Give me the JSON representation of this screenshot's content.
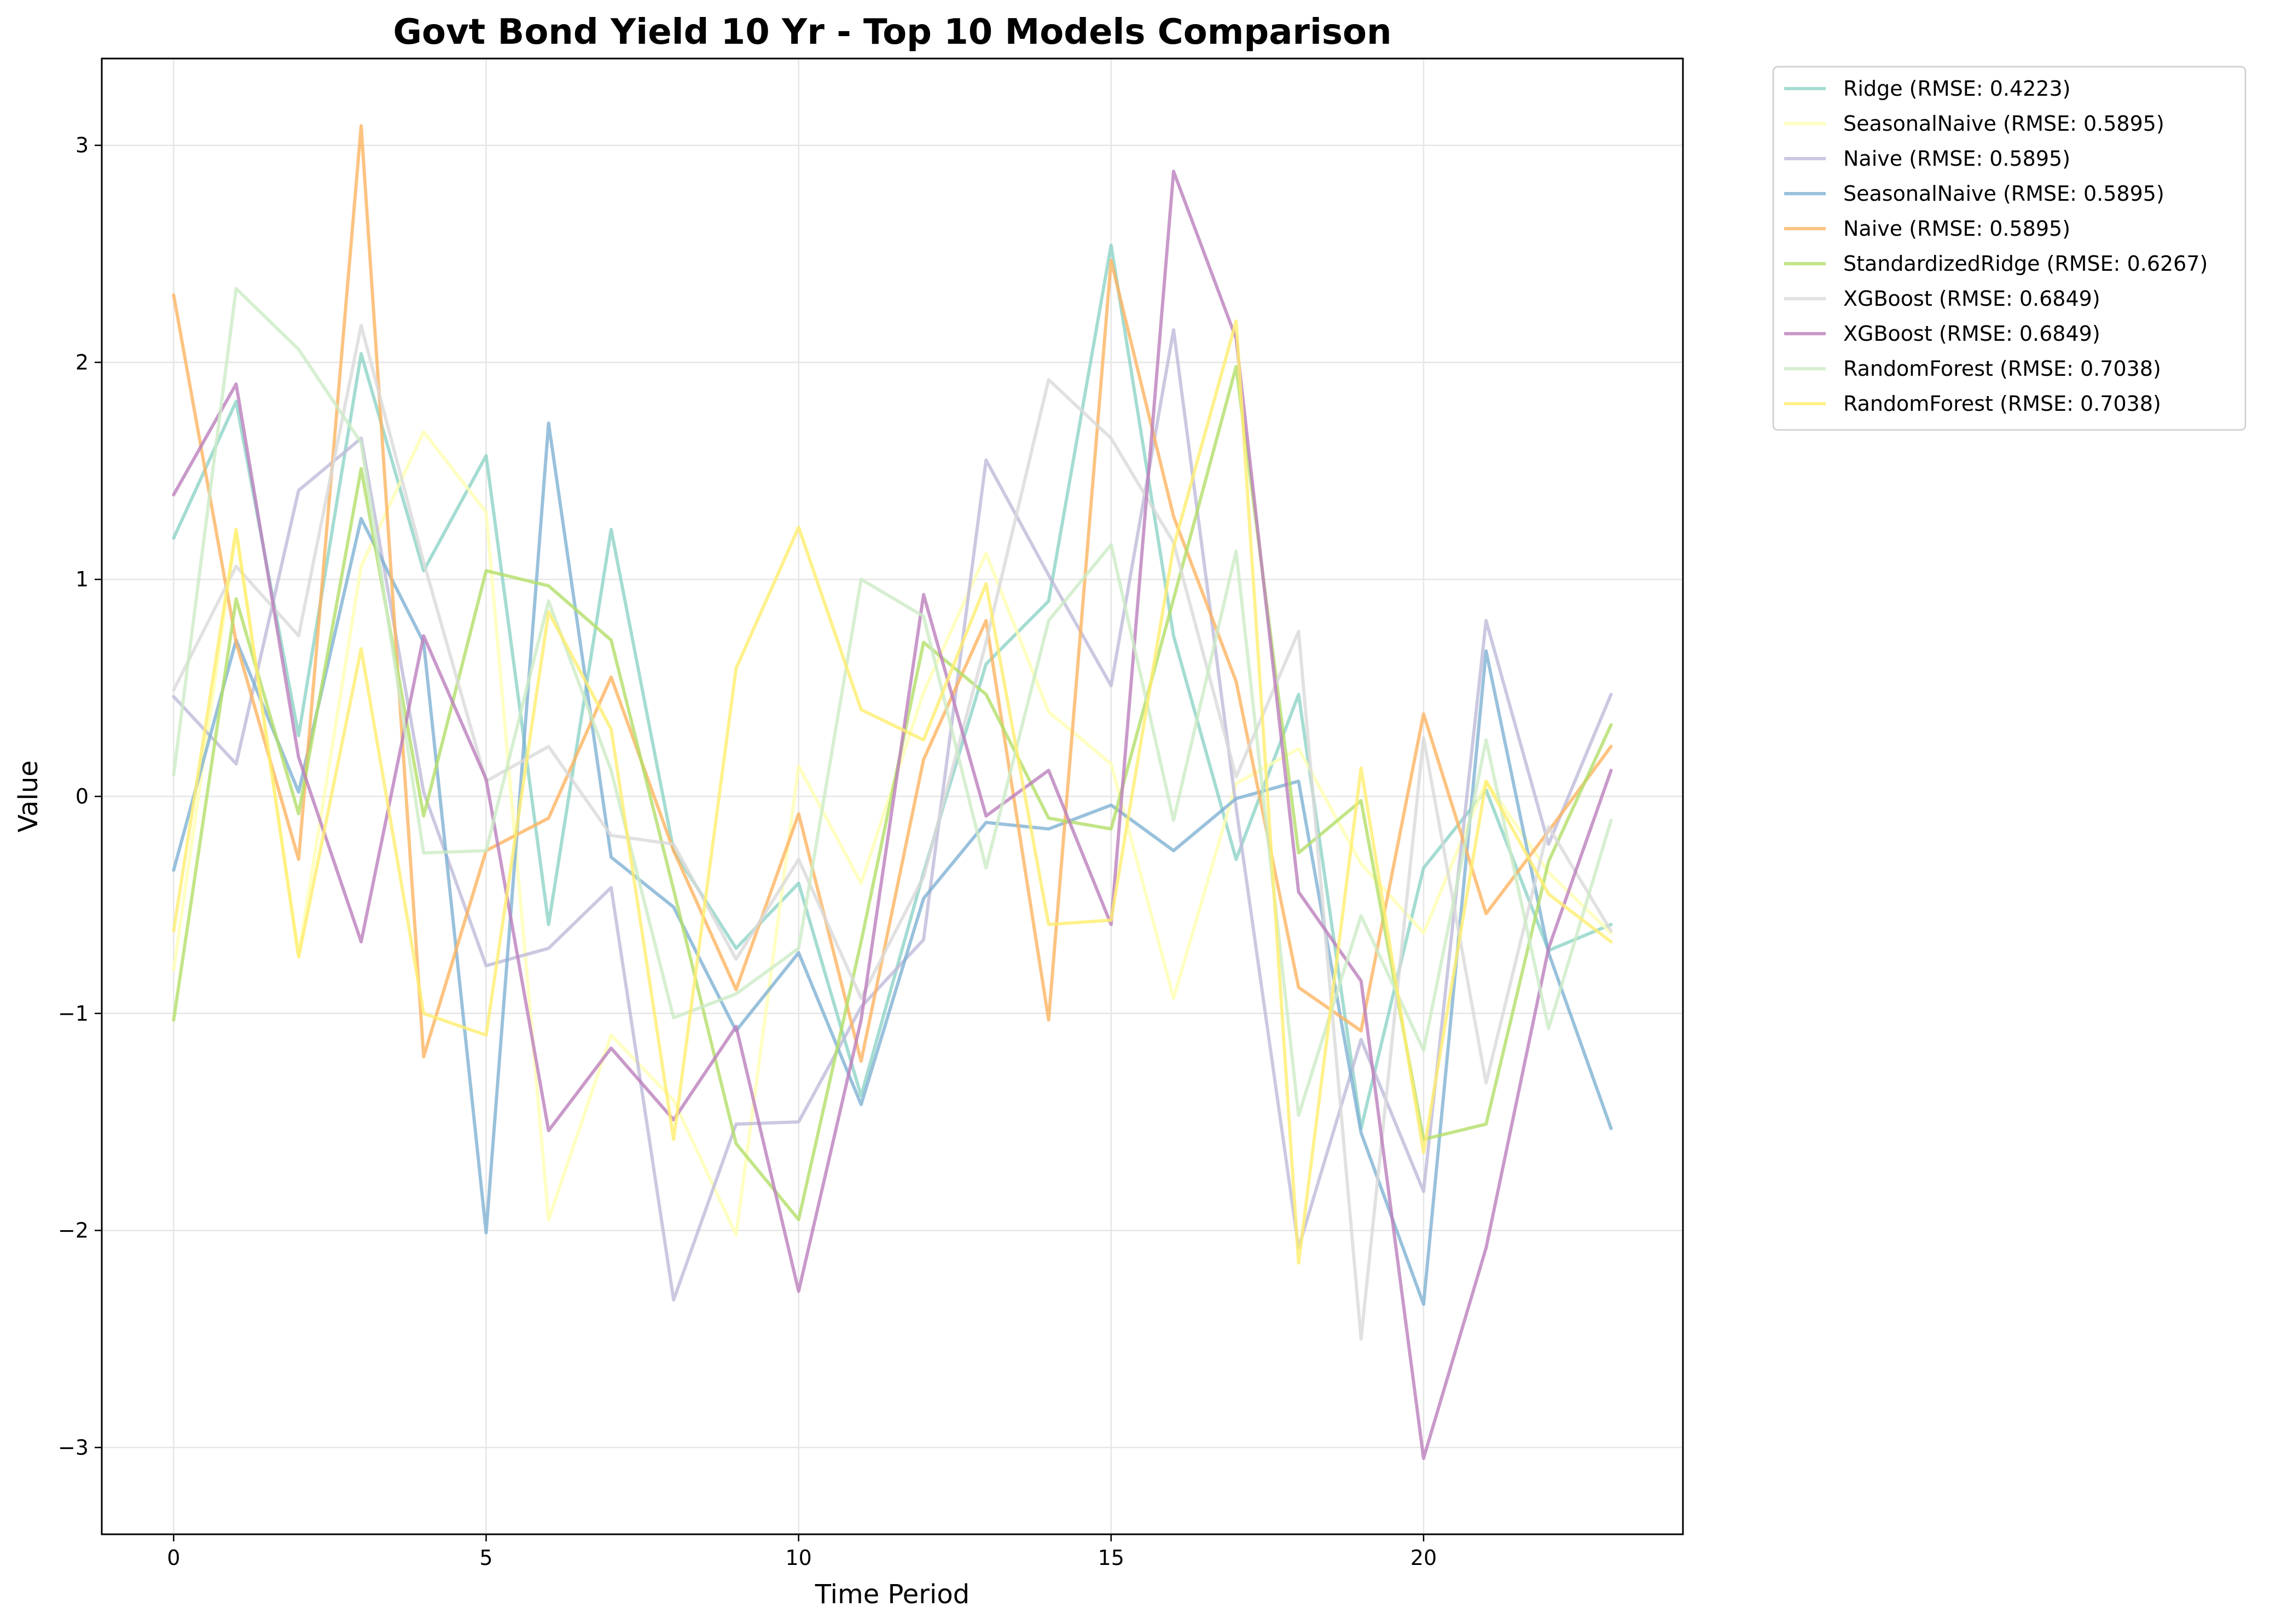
{
  "chart_data": {
    "type": "line",
    "title": "Govt Bond Yield 10 Yr - Top 10 Models Comparison",
    "xlabel": "Time Period",
    "ylabel": "Value",
    "xlim": [
      -1.15,
      24.15
    ],
    "ylim": [
      -3.4,
      3.4
    ],
    "xticks": [
      0,
      5,
      10,
      15,
      20
    ],
    "yticks": [
      -3,
      -2,
      -1,
      0,
      1,
      2,
      3
    ],
    "ytick_labels": [
      "−3",
      "−2",
      "−1",
      "0",
      "1",
      "2",
      "3"
    ],
    "grid": true,
    "legend_position": "outside-top-right",
    "x": [
      0,
      1,
      2,
      3,
      4,
      5,
      6,
      7,
      8,
      9,
      10,
      11,
      12,
      13,
      14,
      15,
      16,
      17,
      18,
      19,
      20,
      21,
      22,
      23
    ],
    "series": [
      {
        "name": "Ridge (RMSE: 0.4223)",
        "color": "#8dd3c7",
        "values": [
          1.19,
          1.82,
          0.28,
          2.04,
          1.04,
          1.57,
          -0.59,
          1.23,
          -0.25,
          -0.7,
          -0.4,
          -1.38,
          -0.35,
          0.61,
          0.9,
          2.54,
          0.74,
          -0.29,
          0.47,
          -1.53,
          -0.33,
          0.03,
          -0.71,
          -0.59
        ]
      },
      {
        "name": "SeasonalNaive (RMSE: 0.5895)",
        "color": "#ffffb3",
        "values": [
          -0.8,
          1.22,
          -0.73,
          1.06,
          1.68,
          1.31,
          -1.95,
          -1.1,
          -1.4,
          -2.02,
          0.14,
          -0.4,
          0.48,
          1.12,
          0.39,
          0.15,
          -0.93,
          0.06,
          0.22,
          -0.31,
          -0.63,
          0.07,
          -0.35,
          -0.63
        ]
      },
      {
        "name": "Naive (RMSE: 0.5895)",
        "color": "#bebada",
        "values": [
          0.46,
          0.15,
          1.41,
          1.65,
          0.02,
          -0.78,
          -0.7,
          -0.42,
          -2.32,
          -1.51,
          -1.5,
          -0.97,
          -0.66,
          1.55,
          1.02,
          0.51,
          2.15,
          -0.05,
          -2.08,
          -1.12,
          -1.82,
          0.81,
          -0.22,
          0.47
        ]
      },
      {
        "name": "SeasonalNaive (RMSE: 0.5895)",
        "color": "#80b1d3",
        "values": [
          -0.34,
          0.72,
          0.02,
          1.28,
          0.71,
          -2.01,
          1.72,
          -0.28,
          -0.51,
          -1.08,
          -0.72,
          -1.42,
          -0.47,
          -0.12,
          -0.15,
          -0.04,
          -0.25,
          -0.01,
          0.07,
          -1.55,
          -2.34,
          0.67,
          -0.72,
          -1.53
        ]
      },
      {
        "name": "Naive (RMSE: 0.5895)",
        "color": "#fdb462",
        "values": [
          2.31,
          0.71,
          -0.29,
          3.09,
          -1.2,
          -0.25,
          -0.1,
          0.55,
          -0.25,
          -0.89,
          -0.08,
          -1.22,
          0.17,
          0.81,
          -1.03,
          2.47,
          1.29,
          0.53,
          -0.88,
          -1.08,
          0.38,
          -0.54,
          -0.16,
          0.23
        ]
      },
      {
        "name": "StandardizedRidge (RMSE: 0.6267)",
        "color": "#b3de69",
        "values": [
          -1.03,
          0.91,
          -0.08,
          1.51,
          -0.09,
          1.04,
          0.97,
          0.72,
          -0.43,
          -1.6,
          -1.95,
          -0.67,
          0.71,
          0.47,
          -0.1,
          -0.15,
          0.91,
          1.98,
          -0.26,
          -0.02,
          -1.58,
          -1.51,
          -0.3,
          0.33
        ]
      },
      {
        "name": "XGBoost (RMSE: 0.6849)",
        "color": "#d9d9d9",
        "values": [
          0.49,
          1.06,
          0.74,
          2.17,
          1.08,
          0.07,
          0.23,
          -0.18,
          -0.22,
          -0.75,
          -0.29,
          -0.93,
          -0.37,
          0.71,
          1.92,
          1.65,
          1.17,
          0.09,
          0.76,
          -2.5,
          0.27,
          -1.32,
          -0.14,
          -0.62
        ]
      },
      {
        "name": "XGBoost (RMSE: 0.6849)",
        "color": "#bc80bd",
        "values": [
          1.39,
          1.9,
          0.18,
          -0.67,
          0.74,
          0.08,
          -1.54,
          -1.16,
          -1.49,
          -1.06,
          -2.28,
          -1.03,
          0.93,
          -0.09,
          0.12,
          -0.59,
          2.88,
          2.11,
          -0.44,
          -0.85,
          -3.05,
          -2.08,
          -0.7,
          0.12
        ]
      },
      {
        "name": "RandomForest (RMSE: 0.7038)",
        "color": "#ccebc5",
        "values": [
          0.1,
          2.34,
          2.06,
          1.63,
          -0.26,
          -0.25,
          0.9,
          0.12,
          -1.02,
          -0.91,
          -0.7,
          1.0,
          0.83,
          -0.33,
          0.81,
          1.16,
          -0.11,
          1.13,
          -1.47,
          -0.55,
          -1.17,
          0.26,
          -1.07,
          -0.11
        ]
      },
      {
        "name": "RandomForest (RMSE: 0.7038)",
        "color": "#ffed6f",
        "values": [
          -0.62,
          1.23,
          -0.74,
          0.68,
          -1.0,
          -1.1,
          0.85,
          0.31,
          -1.58,
          0.59,
          1.24,
          0.4,
          0.26,
          0.98,
          -0.59,
          -0.57,
          1.15,
          2.19,
          -2.15,
          0.13,
          -1.64,
          0.07,
          -0.45,
          -0.67
        ]
      }
    ]
  }
}
